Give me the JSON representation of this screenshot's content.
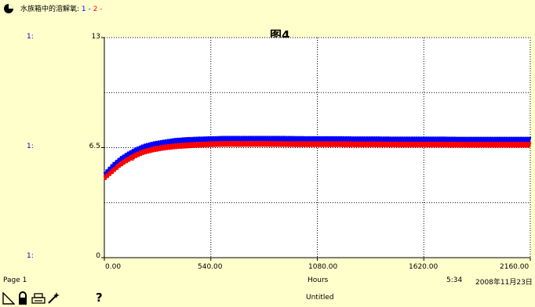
{
  "legend": {
    "label": "水族箱中的溶解氧:",
    "series1_num": "1",
    "dash1": " - ",
    "series2_num": "2",
    "dash2": " -"
  },
  "left_scale_labels": [
    "1:",
    "1:",
    "1:"
  ],
  "footer": {
    "page": "Page 1",
    "xunit": "Hours",
    "time": "5:34",
    "date": "2008年11月23日",
    "doc": "Untitled",
    "help_glyph": "?"
  },
  "colors": {
    "series1": "#0000ff",
    "series2": "#ff0000",
    "background": "#ffffcc",
    "plot_bg": "#ffffff"
  },
  "icons": [
    "pie-icon",
    "page-corner-icon",
    "lock-icon",
    "print-icon",
    "wand-icon",
    "help-icon"
  ],
  "chart_data": {
    "type": "line",
    "title": "图4",
    "xlabel": "Hours",
    "ylabel": "",
    "xlim": [
      0,
      2160
    ],
    "ylim": [
      0,
      13
    ],
    "x_ticks": [
      "0.00",
      "540.00",
      "1080.00",
      "1620.00",
      "2160.00"
    ],
    "y_ticks": [
      "0",
      "6.5",
      "13"
    ],
    "grid": true,
    "series": [
      {
        "name": "1",
        "color": "#0000ff",
        "x": [
          0,
          40,
          80,
          120,
          160,
          200,
          250,
          300,
          360,
          420,
          480,
          540,
          600,
          700,
          800,
          900,
          1000,
          1080,
          1200,
          1300,
          1400,
          1500,
          1620,
          1700,
          1800,
          1900,
          2000,
          2100,
          2160
        ],
        "y": [
          4.9,
          5.4,
          5.8,
          6.1,
          6.35,
          6.55,
          6.7,
          6.8,
          6.9,
          6.95,
          6.98,
          7.0,
          7.02,
          7.02,
          7.02,
          7.02,
          7.01,
          7.0,
          7.0,
          6.99,
          6.99,
          6.98,
          6.98,
          6.98,
          6.97,
          6.97,
          6.97,
          6.97,
          6.97
        ],
        "oscillation": 0.32,
        "markers": [
          50,
          540,
          1080,
          1620
        ]
      },
      {
        "name": "2",
        "color": "#ff0000",
        "x": [
          0,
          40,
          80,
          120,
          160,
          200,
          250,
          300,
          360,
          420,
          480,
          540,
          600,
          700,
          800,
          900,
          1000,
          1080,
          1200,
          1300,
          1400,
          1500,
          1620,
          1700,
          1800,
          1900,
          2000,
          2100,
          2160
        ],
        "y": [
          4.7,
          5.1,
          5.5,
          5.8,
          6.05,
          6.25,
          6.4,
          6.5,
          6.58,
          6.63,
          6.67,
          6.7,
          6.72,
          6.72,
          6.72,
          6.71,
          6.7,
          6.7,
          6.7,
          6.69,
          6.69,
          6.68,
          6.68,
          6.68,
          6.67,
          6.67,
          6.67,
          6.67,
          6.67
        ],
        "oscillation": 0.32,
        "markers": [
          140,
          680,
          1220,
          1760
        ]
      }
    ]
  }
}
